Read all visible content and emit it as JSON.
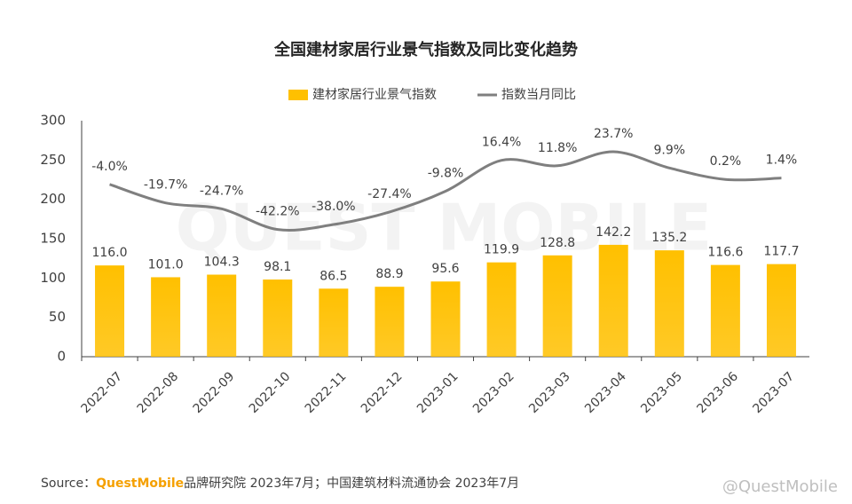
{
  "chart_data": {
    "type": "bar",
    "title": "全国建材家居行业景气指数及同比变化趋势",
    "categories": [
      "2022-07",
      "2022-08",
      "2022-09",
      "2022-10",
      "2022-11",
      "2022-12",
      "2023-01",
      "2023-02",
      "2023-03",
      "2023-04",
      "2023-05",
      "2023-06",
      "2023-07"
    ],
    "series": [
      {
        "name": "建材家居行业景气指数",
        "type": "bar",
        "color": "#ffc000",
        "values": [
          116.0,
          101.0,
          104.3,
          98.1,
          86.5,
          88.9,
          95.6,
          119.9,
          128.8,
          142.2,
          135.2,
          116.6,
          117.7
        ],
        "value_labels": [
          "116.0",
          "101.0",
          "104.3",
          "98.1",
          "86.5",
          "88.9",
          "95.6",
          "119.9",
          "128.8",
          "142.2",
          "135.2",
          "116.6",
          "117.7"
        ]
      },
      {
        "name": "指数当月同比",
        "type": "line",
        "axis": "y2",
        "color": "#7f7f7f",
        "values": [
          -4.0,
          -19.7,
          -24.7,
          -42.2,
          -38.0,
          -27.4,
          -9.8,
          16.4,
          11.8,
          23.7,
          9.9,
          0.2,
          1.4
        ],
        "value_labels": [
          "-4.0%",
          "-19.7%",
          "-24.7%",
          "-42.2%",
          "-38.0%",
          "-27.4%",
          "-9.8%",
          "16.4%",
          "11.8%",
          "23.7%",
          "9.9%",
          "0.2%",
          "1.4%"
        ]
      }
    ],
    "ylim": [
      0,
      300
    ],
    "yticks": [
      0,
      50,
      100,
      150,
      200,
      250,
      300
    ],
    "y2lim": [
      -150,
      50
    ],
    "legend": "top",
    "source": {
      "prefix": "Source：",
      "brand": "QuestMobile",
      "rest": "品牌研究院 2023年7月；中国建筑材料流通协会 2023年7月"
    },
    "watermark": "QUEST MOBILE",
    "credit": "@QuestMobile"
  }
}
